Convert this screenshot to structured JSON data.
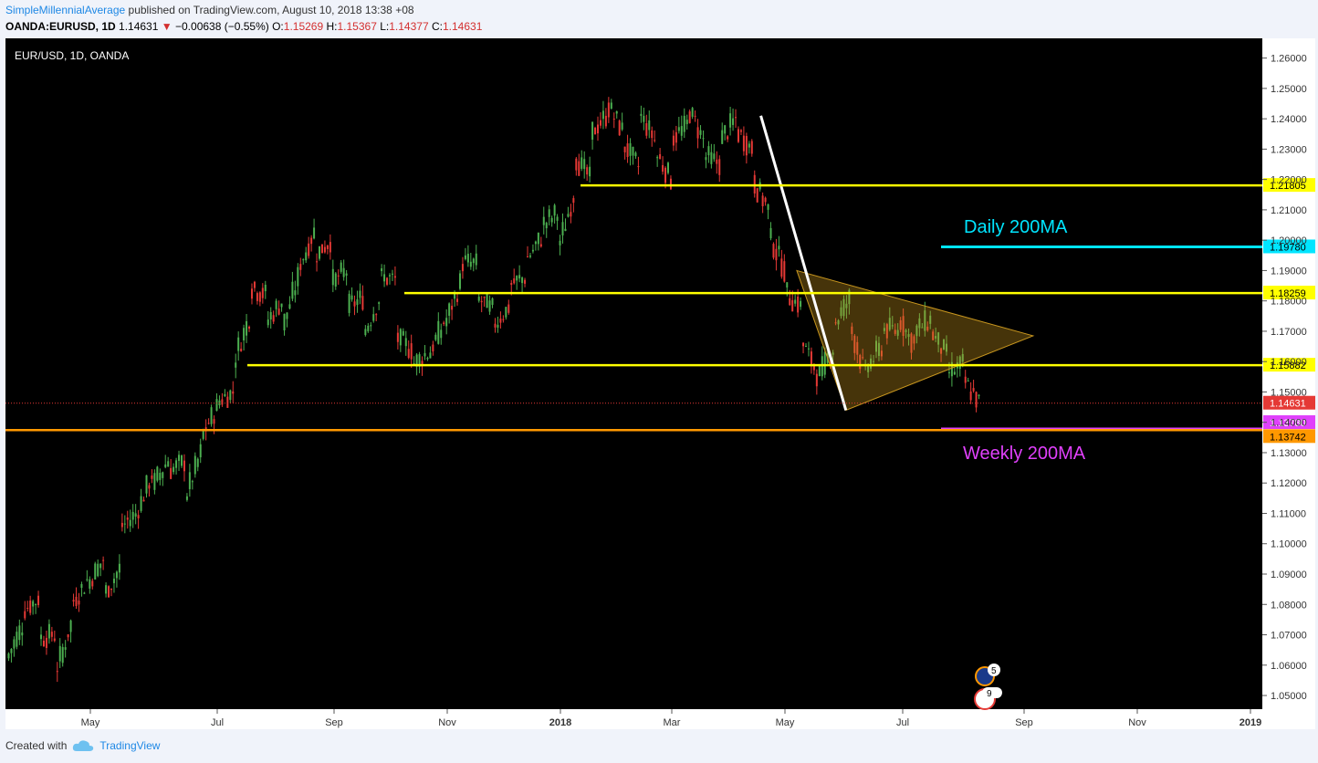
{
  "header": {
    "author": "SimpleMillennialAverage",
    "published_text": "published on TradingView.com, August 10, 2018 13:38 +08",
    "symbol": "OANDA:EURUSD, 1D",
    "last": "1.14631",
    "change": "−0.00638 (−0.55%)",
    "o_label": "O:",
    "o_value": "1.15269",
    "h_label": "H:",
    "h_value": "1.15367",
    "l_label": "L:",
    "l_value": "1.14377",
    "c_label": "C:",
    "c_value": "1.14631"
  },
  "footer": {
    "created_with": "Created with",
    "brand": "TradingView"
  },
  "chart_data": {
    "type": "candlestick",
    "title": "EUR/USD, 1D, OANDA",
    "x_ticks": [
      "May",
      "Jul",
      "Sep",
      "Nov",
      "2018",
      "Mar",
      "May",
      "Jul",
      "Sep",
      "Nov",
      "2019"
    ],
    "y_ticks": [
      "1.05000",
      "1.06000",
      "1.07000",
      "1.08000",
      "1.09000",
      "1.10000",
      "1.11000",
      "1.12000",
      "1.13000",
      "1.14000",
      "1.15000",
      "1.16000",
      "1.17000",
      "1.18000",
      "1.19000",
      "1.20000",
      "1.21000",
      "1.22000",
      "1.23000",
      "1.24000",
      "1.25000",
      "1.26000"
    ],
    "ylim": [
      1.0455,
      1.2665
    ],
    "background": "#000000",
    "colors": {
      "up": "#26a69a",
      "down": "#ef5350",
      "yellow": "#ffff00",
      "cyan": "#00e5ff",
      "magenta": "#e040fb",
      "orange": "#ff9800",
      "wedge": "#c8961e",
      "last": "#e53935"
    },
    "price_path": [
      [
        1.062,
        1.0735
      ],
      [
        1.078,
        1.082
      ],
      [
        1.069,
        1.07
      ],
      [
        1.057,
        1.074
      ],
      [
        1.08,
        1.088
      ],
      [
        1.087,
        1.095
      ],
      [
        1.083,
        1.092
      ],
      [
        1.105,
        1.11
      ],
      [
        1.11,
        1.123
      ],
      [
        1.119,
        1.128
      ],
      [
        1.124,
        1.127
      ],
      [
        1.115,
        1.13
      ],
      [
        1.135,
        1.145
      ],
      [
        1.147,
        1.15
      ],
      [
        1.16,
        1.175
      ],
      [
        1.185,
        1.182
      ],
      [
        1.173,
        1.18
      ],
      [
        1.171,
        1.188
      ],
      [
        1.191,
        1.203
      ],
      [
        1.195,
        1.2
      ],
      [
        1.186,
        1.19
      ],
      [
        1.178,
        1.181
      ],
      [
        1.169,
        1.181
      ],
      [
        1.188,
        1.187
      ],
      [
        1.168,
        1.164
      ],
      [
        1.159,
        1.163
      ],
      [
        1.162,
        1.173
      ],
      [
        1.172,
        1.186
      ],
      [
        1.193,
        1.192
      ],
      [
        1.181,
        1.177
      ],
      [
        1.172,
        1.178
      ],
      [
        1.185,
        1.188
      ],
      [
        1.193,
        1.201
      ],
      [
        1.205,
        1.209
      ],
      [
        1.197,
        1.215
      ],
      [
        1.228,
        1.22
      ],
      [
        1.235,
        1.241
      ],
      [
        1.245,
        1.236
      ],
      [
        1.232,
        1.224
      ],
      [
        1.242,
        1.233
      ],
      [
        1.229,
        1.22
      ],
      [
        1.233,
        1.238
      ],
      [
        1.244,
        1.233
      ],
      [
        1.228,
        1.225
      ],
      [
        1.233,
        1.24
      ],
      [
        1.236,
        1.23
      ],
      [
        1.22,
        1.21
      ],
      [
        1.202,
        1.19
      ],
      [
        1.183,
        1.178
      ],
      [
        1.167,
        1.156
      ],
      [
        1.154,
        1.165
      ],
      [
        1.172,
        1.181
      ],
      [
        1.172,
        1.155
      ],
      [
        1.158,
        1.165
      ],
      [
        1.171,
        1.17
      ],
      [
        1.175,
        1.165
      ],
      [
        1.17,
        1.174
      ],
      [
        1.17,
        1.162
      ],
      [
        1.156,
        1.159
      ],
      [
        1.154,
        1.1463
      ]
    ],
    "horizontal_levels": [
      {
        "value": "1.21805",
        "color": "yellow"
      },
      {
        "value": "1.19780",
        "color": "cyan",
        "label": "Daily 200MA"
      },
      {
        "value": "1.18259",
        "color": "yellow"
      },
      {
        "value": "1.15882",
        "color": "yellow"
      },
      {
        "value": "1.14631",
        "color": "last"
      },
      {
        "value": "1.13780",
        "color": "magenta",
        "label": "Weekly 200MA"
      },
      {
        "value": "1.13742",
        "color": "orange"
      }
    ],
    "trendline": {
      "from": [
        "2018-04-17",
        1.241
      ],
      "to": [
        "2018-06-01",
        1.144
      ]
    },
    "wedge": {
      "points": [
        [
          "2018-05-06",
          1.19
        ],
        [
          "2018-09-08",
          1.1685
        ],
        [
          "2018-06-01",
          1.144
        ]
      ]
    },
    "event_badges": [
      "5",
      "9"
    ]
  }
}
